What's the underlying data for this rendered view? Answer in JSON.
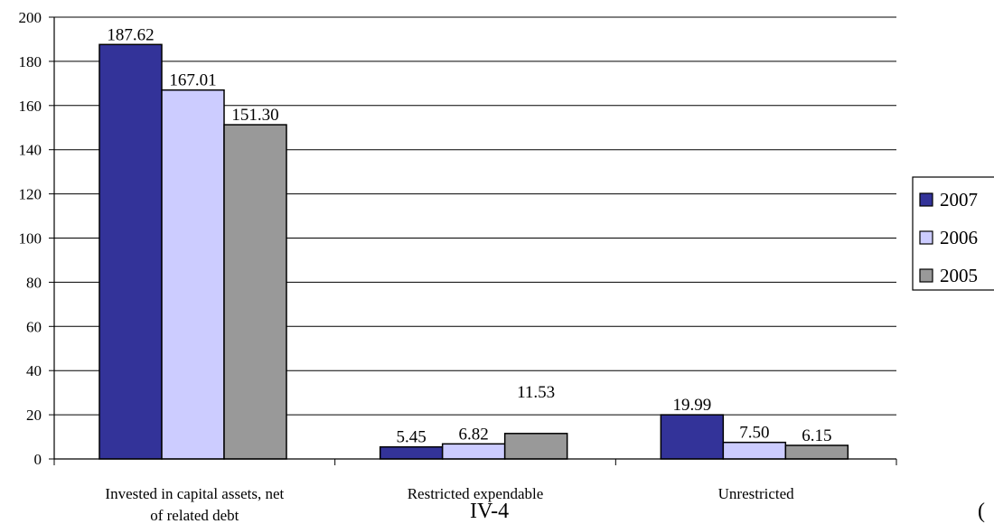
{
  "chart_data": {
    "type": "bar",
    "categories": [
      "Invested in capital assets, net of related debt",
      "Restricted expendable",
      "Unrestricted"
    ],
    "category_lines": [
      [
        "Invested in capital assets, net",
        "of related debt"
      ],
      [
        "Restricted expendable"
      ],
      [
        "Unrestricted"
      ]
    ],
    "series": [
      {
        "name": "2007",
        "values": [
          187.62,
          5.45,
          19.99
        ],
        "labels": [
          "187.62",
          "5.45",
          "19.99"
        ],
        "color": "#333399"
      },
      {
        "name": "2006",
        "values": [
          167.01,
          6.82,
          7.5
        ],
        "labels": [
          "167.01",
          "6.82",
          "7.50"
        ],
        "color": "#ccccff"
      },
      {
        "name": "2005",
        "values": [
          151.3,
          11.53,
          6.15
        ],
        "labels": [
          "151.30",
          "11.53",
          "6.15"
        ],
        "color": "#999999"
      }
    ],
    "ylim": [
      0,
      200
    ],
    "yticks": [
      "0",
      "20",
      "40",
      "60",
      "80",
      "100",
      "120",
      "140",
      "160",
      "180",
      "200"
    ],
    "grid": true,
    "legend_position": "right",
    "title": "",
    "xlabel": "",
    "ylabel": ""
  },
  "footer": {
    "page_number": "IV-4",
    "corner_mark": "("
  }
}
